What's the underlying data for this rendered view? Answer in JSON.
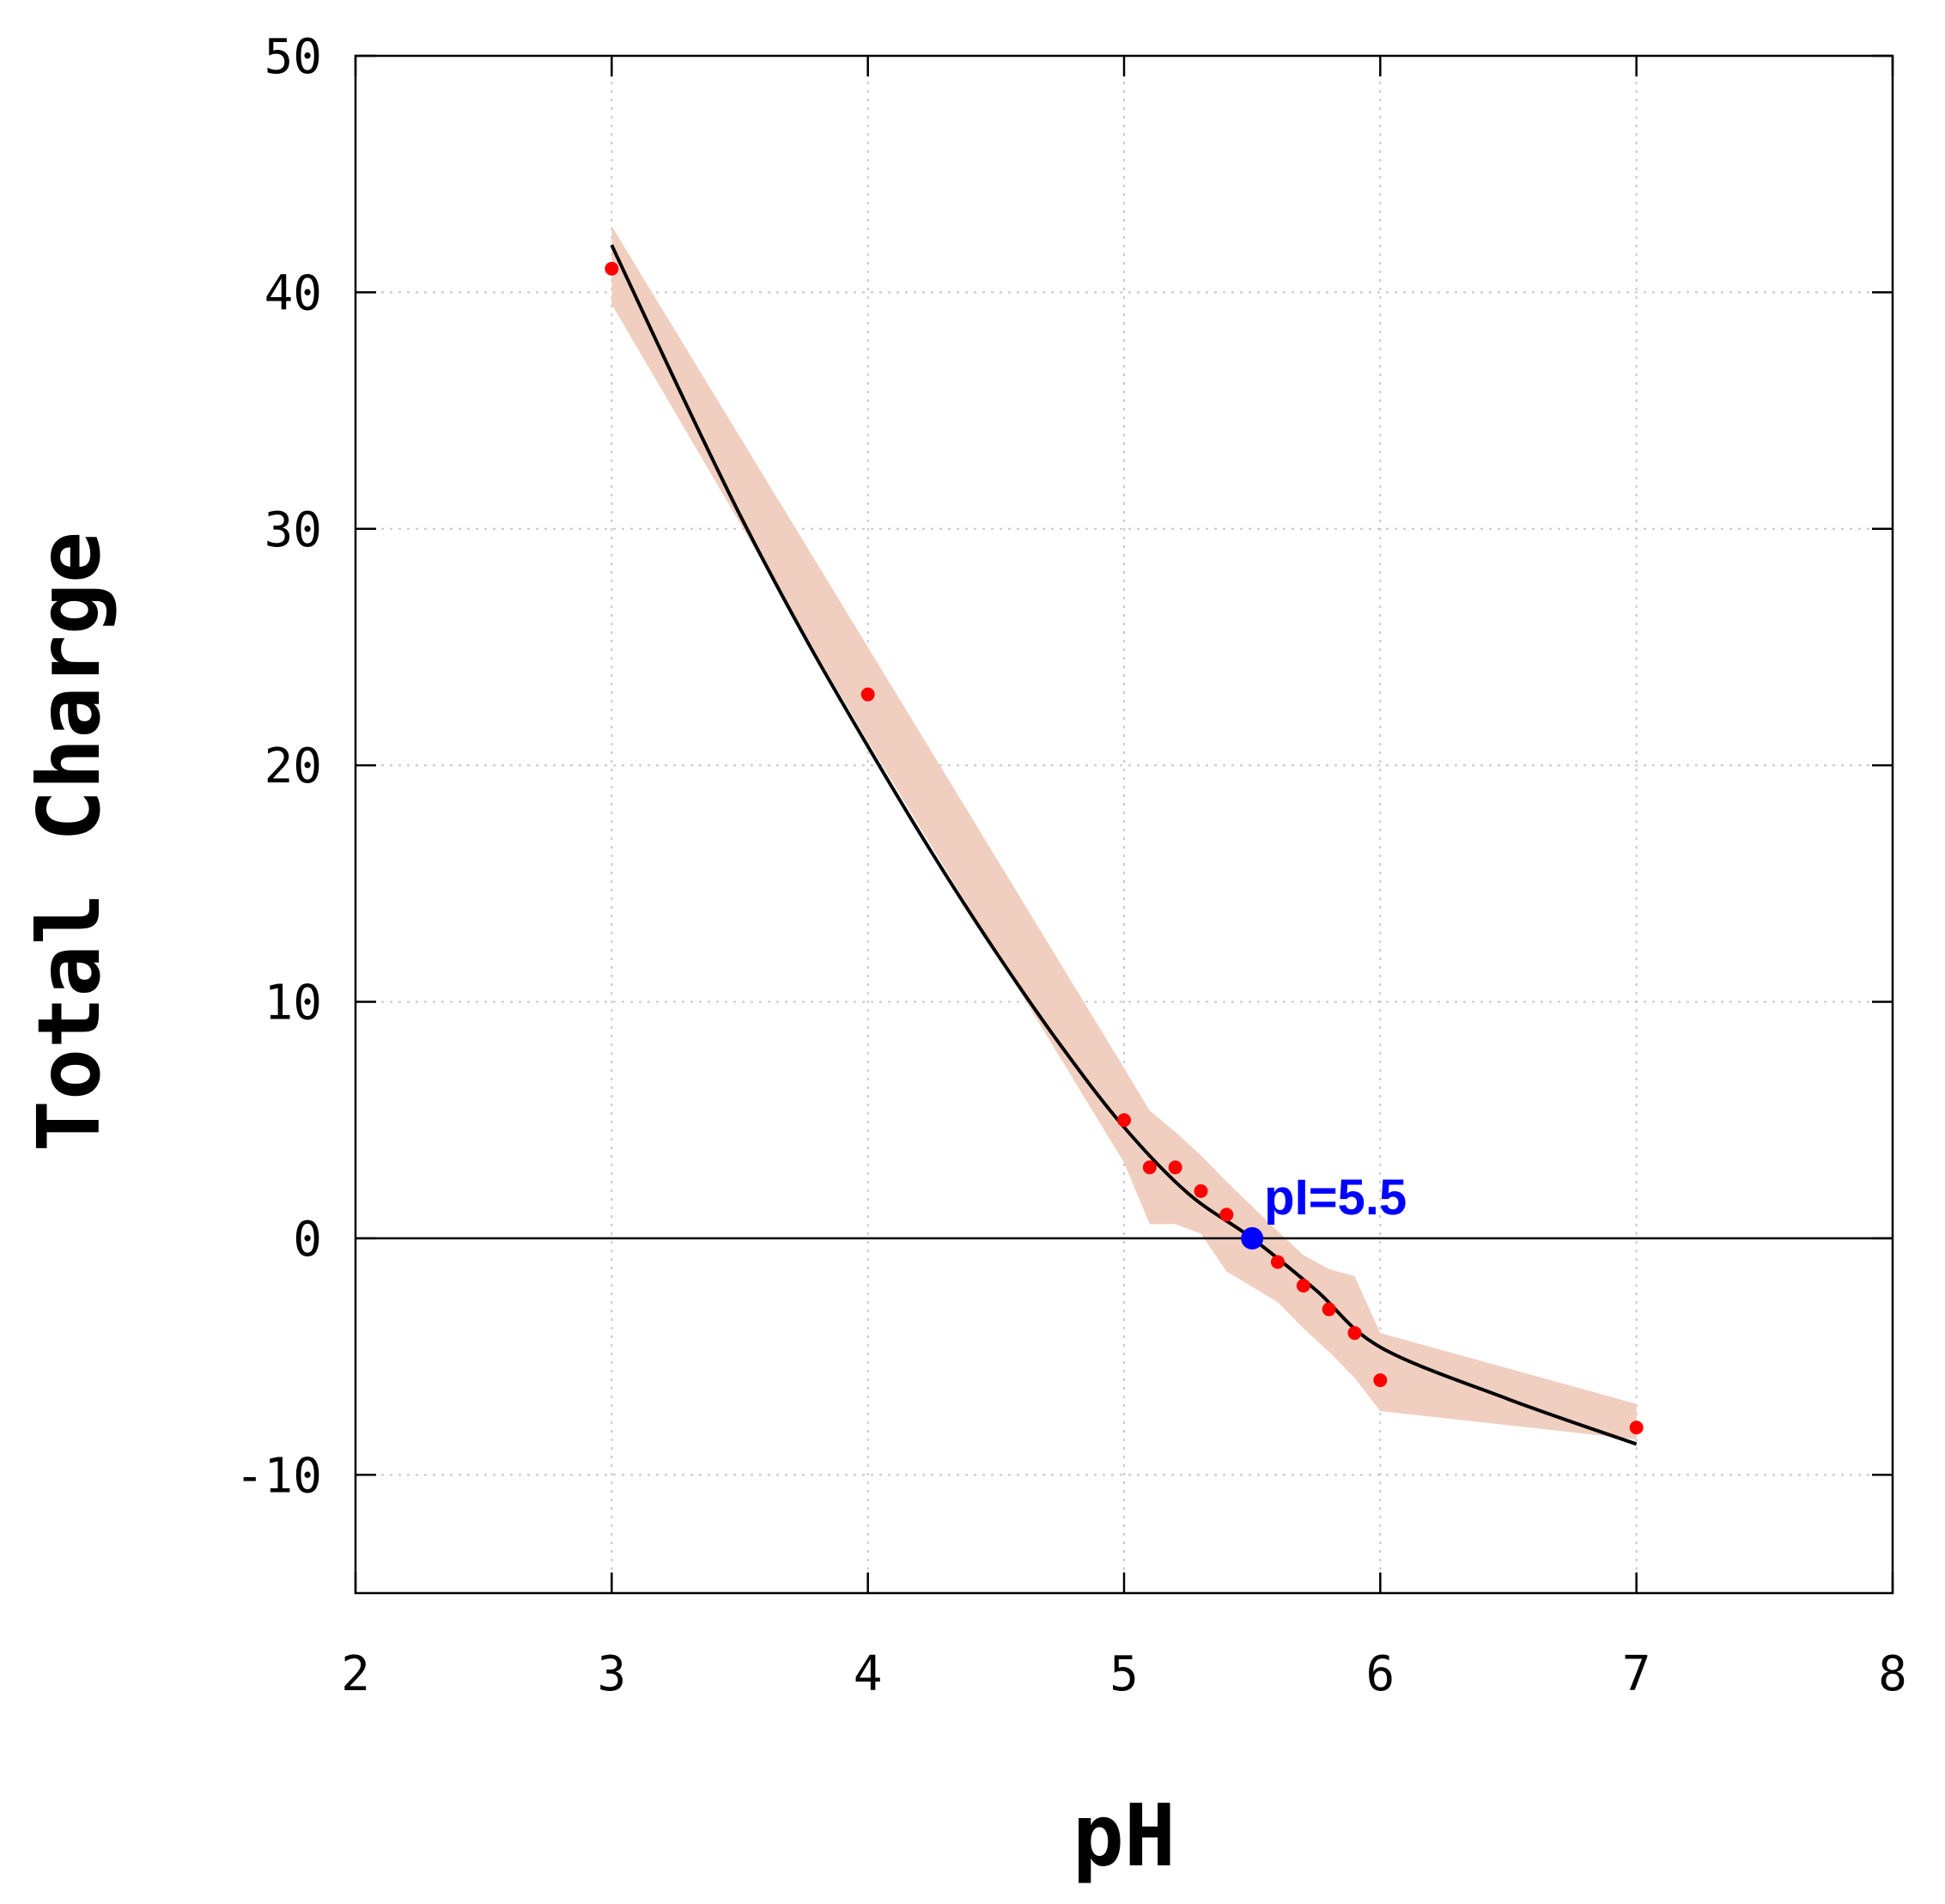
{
  "chart_data": {
    "type": "line",
    "xlabel": "pH",
    "ylabel": "Total Charge",
    "xlim": [
      2,
      8
    ],
    "ylim": [
      -15,
      50
    ],
    "xticks": [
      2,
      3,
      4,
      5,
      6,
      7,
      8
    ],
    "yticks": [
      -10,
      0,
      10,
      20,
      30,
      40,
      50
    ],
    "grid": true,
    "zero_line": true,
    "colors": {
      "fit_line": "#000000",
      "band": "#f0cfc0",
      "points": "#ff0000",
      "pi_point": "#0000ff"
    },
    "series": [
      {
        "type": "scatter",
        "x": [
          3.0,
          4.0,
          5.0,
          5.1,
          5.2,
          5.3,
          5.4,
          5.6,
          5.7,
          5.8,
          5.9,
          6.0,
          7.0
        ],
        "y": [
          41,
          23,
          5,
          3,
          3,
          2,
          1,
          -1,
          -2,
          -3,
          -4,
          -6,
          -8
        ]
      },
      {
        "type": "line",
        "x": [
          3.0,
          3.25,
          3.5,
          3.75,
          4.0,
          4.25,
          4.5,
          4.75,
          5.0,
          5.25,
          5.5,
          5.75,
          6.0,
          6.5,
          7.0
        ],
        "y": [
          42,
          36.2,
          30.6,
          25.5,
          20.8,
          16.3,
          12.1,
          8.2,
          4.7,
          1.9,
          0,
          -2.2,
          -4.6,
          -6.8,
          -8.7
        ]
      },
      {
        "type": "band",
        "x": [
          3.0,
          4.0,
          5.0,
          5.1,
          5.2,
          5.3,
          5.4,
          5.6,
          5.7,
          5.8,
          5.9,
          6.0,
          7.0
        ],
        "upper": [
          42.8,
          25.0,
          7.2,
          5.4,
          4.5,
          3.5,
          2.4,
          0.3,
          -0.7,
          -1.3,
          -1.6,
          -4.0,
          -7.0
        ],
        "lower": [
          39.5,
          21.0,
          3.2,
          0.6,
          0.6,
          0.2,
          -1.4,
          -2.7,
          -3.8,
          -4.8,
          -5.9,
          -7.3,
          -8.5
        ]
      }
    ],
    "annotations": [
      {
        "text": "pI=5.5",
        "x": 5.5,
        "y": 0
      }
    ]
  }
}
